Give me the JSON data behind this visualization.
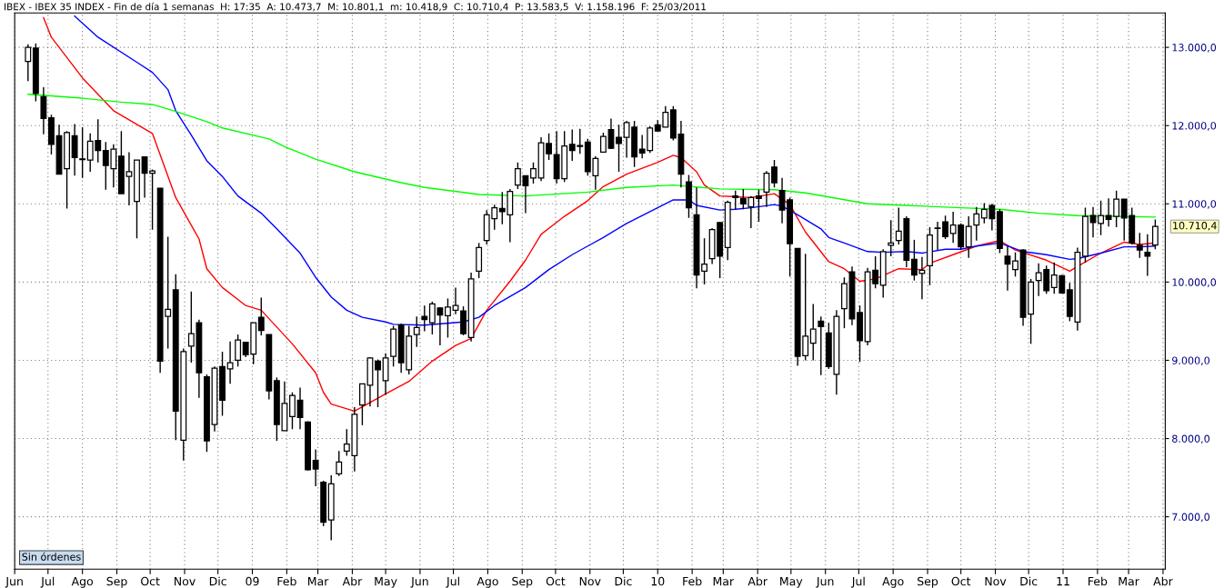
{
  "chart_data": {
    "type": "candlestick",
    "title": "IBEX - IBEX 35 INDEX - Fin de día 1 semanas  H: 17:35  A: 10.473,7  M: 10.801,1  m: 10.418,9  C: 10.710,4  P: 13.583,5  V: 1.158.196  F: 25/03/2011",
    "x": [
      "2008-06-13",
      "2008-06-20",
      "2008-06-27",
      "2008-07-04",
      "2008-07-11",
      "2008-07-18",
      "2008-07-25",
      "2008-08-01",
      "2008-08-08",
      "2008-08-15",
      "2008-08-22",
      "2008-08-29",
      "2008-09-05",
      "2008-09-12",
      "2008-09-19",
      "2008-09-26",
      "2008-10-03",
      "2008-10-10",
      "2008-10-17",
      "2008-10-24",
      "2008-10-31",
      "2008-11-07",
      "2008-11-14",
      "2008-11-21",
      "2008-11-28",
      "2008-12-05",
      "2008-12-12",
      "2008-12-19",
      "2008-12-26",
      "2009-01-02",
      "2009-01-09",
      "2009-01-16",
      "2009-01-23",
      "2009-01-30",
      "2009-02-06",
      "2009-02-13",
      "2009-02-20",
      "2009-02-27",
      "2009-03-06",
      "2009-03-13",
      "2009-03-20",
      "2009-03-27",
      "2009-04-03",
      "2009-04-10",
      "2009-04-17",
      "2009-04-24",
      "2009-05-01",
      "2009-05-08",
      "2009-05-15",
      "2009-05-22",
      "2009-05-29",
      "2009-06-05",
      "2009-06-12",
      "2009-06-19",
      "2009-06-26",
      "2009-07-03",
      "2009-07-10",
      "2009-07-17",
      "2009-07-24",
      "2009-07-31",
      "2009-08-07",
      "2009-08-14",
      "2009-08-21",
      "2009-08-28",
      "2009-09-04",
      "2009-09-11",
      "2009-09-18",
      "2009-09-25",
      "2009-10-02",
      "2009-10-09",
      "2009-10-16",
      "2009-10-23",
      "2009-10-30",
      "2009-11-06",
      "2009-11-13",
      "2009-11-20",
      "2009-11-27",
      "2009-12-04",
      "2009-12-11",
      "2009-12-18",
      "2009-12-25",
      "2010-01-01",
      "2010-01-08",
      "2010-01-15",
      "2010-01-22",
      "2010-01-29",
      "2010-02-05",
      "2010-02-12",
      "2010-02-19",
      "2010-02-26",
      "2010-03-05",
      "2010-03-12",
      "2010-03-19",
      "2010-03-26",
      "2010-04-02",
      "2010-04-09",
      "2010-04-16",
      "2010-04-23",
      "2010-04-30",
      "2010-05-07",
      "2010-05-14",
      "2010-05-21",
      "2010-05-28",
      "2010-06-04",
      "2010-06-11",
      "2010-06-18",
      "2010-06-25",
      "2010-07-02",
      "2010-07-09",
      "2010-07-16",
      "2010-07-23",
      "2010-07-30",
      "2010-08-06",
      "2010-08-13",
      "2010-08-20",
      "2010-08-27",
      "2010-09-03",
      "2010-09-10",
      "2010-09-17",
      "2010-09-24",
      "2010-10-01",
      "2010-10-08",
      "2010-10-15",
      "2010-10-22",
      "2010-10-29",
      "2010-11-05",
      "2010-11-12",
      "2010-11-19",
      "2010-11-26",
      "2010-12-03",
      "2010-12-10",
      "2010-12-17",
      "2010-12-24",
      "2010-12-31",
      "2011-01-07",
      "2011-01-14",
      "2011-01-21",
      "2011-01-28",
      "2011-02-04",
      "2011-02-11",
      "2011-02-18",
      "2011-02-25",
      "2011-03-04",
      "2011-03-11",
      "2011-03-18",
      "2011-03-25"
    ],
    "ohlc": [
      [
        12820,
        13040,
        12570,
        13000
      ],
      [
        12990,
        13050,
        12310,
        12410
      ],
      [
        12370,
        12490,
        11890,
        12090
      ],
      [
        12100,
        12140,
        11630,
        11760
      ],
      [
        11870,
        12010,
        11380,
        11380
      ],
      [
        11450,
        11930,
        10940,
        11910
      ],
      [
        11870,
        12020,
        11360,
        11590
      ],
      [
        11575,
        11980,
        11330,
        11565
      ],
      [
        11560,
        11900,
        11410,
        11800
      ],
      [
        11810,
        12080,
        11530,
        11680
      ],
      [
        11680,
        11790,
        11180,
        11490
      ],
      [
        11450,
        11760,
        11210,
        11700
      ],
      [
        11610,
        11930,
        11130,
        11130
      ],
      [
        11350,
        11660,
        10980,
        11410
      ],
      [
        11030,
        11560,
        10560,
        11560
      ],
      [
        11600,
        11600,
        11080,
        11390
      ],
      [
        11390,
        11440,
        10670,
        11420
      ],
      [
        11200,
        11200,
        8840,
        8990
      ],
      [
        9560,
        10580,
        9150,
        9650
      ],
      [
        9900,
        10100,
        7980,
        8350
      ],
      [
        7980,
        9150,
        7720,
        9110
      ],
      [
        9180,
        9880,
        8970,
        9340
      ],
      [
        9480,
        9520,
        8520,
        8840
      ],
      [
        8790,
        8820,
        7830,
        7970
      ],
      [
        8180,
        8920,
        8090,
        8900
      ],
      [
        8920,
        9110,
        8290,
        8490
      ],
      [
        8890,
        9240,
        8700,
        8970
      ],
      [
        9000,
        9330,
        8920,
        9260
      ],
      [
        9230,
        9230,
        9040,
        9070
      ],
      [
        9080,
        9480,
        8950,
        9480
      ],
      [
        9550,
        9800,
        9320,
        9380
      ],
      [
        9330,
        9330,
        8500,
        8610
      ],
      [
        8740,
        8780,
        7970,
        8180
      ],
      [
        8100,
        8730,
        8100,
        8450
      ],
      [
        8280,
        8590,
        8120,
        8550
      ],
      [
        8490,
        8650,
        8120,
        8270
      ],
      [
        8210,
        8220,
        7590,
        7600
      ],
      [
        7720,
        7860,
        7390,
        7610
      ],
      [
        7440,
        7460,
        6880,
        6930
      ],
      [
        6960,
        7530,
        6700,
        7420
      ],
      [
        7550,
        7840,
        7520,
        7700
      ],
      [
        7840,
        8120,
        7780,
        7930
      ],
      [
        7780,
        8400,
        7580,
        8310
      ],
      [
        8430,
        8700,
        8170,
        8700
      ],
      [
        8680,
        9040,
        8410,
        9030
      ],
      [
        8990,
        9010,
        8400,
        8880
      ],
      [
        8740,
        9090,
        8560,
        9030
      ],
      [
        9050,
        9440,
        8920,
        9400
      ],
      [
        9450,
        9470,
        8840,
        8970
      ],
      [
        8880,
        9440,
        8820,
        9310
      ],
      [
        9330,
        9560,
        9170,
        9420
      ],
      [
        9560,
        9700,
        9370,
        9520
      ],
      [
        9480,
        9750,
        9330,
        9720
      ],
      [
        9670,
        9680,
        9190,
        9580
      ],
      [
        9570,
        9790,
        9290,
        9680
      ],
      [
        9640,
        9930,
        9590,
        9700
      ],
      [
        9630,
        9690,
        9320,
        9340
      ],
      [
        9290,
        10120,
        9240,
        10040
      ],
      [
        10140,
        10500,
        10050,
        10440
      ],
      [
        10530,
        10920,
        10480,
        10860
      ],
      [
        10810,
        10990,
        10670,
        10950
      ],
      [
        10940,
        11150,
        10740,
        10900
      ],
      [
        10860,
        11190,
        10510,
        11160
      ],
      [
        11240,
        11530,
        11190,
        11450
      ],
      [
        11360,
        11360,
        10880,
        11230
      ],
      [
        11330,
        11530,
        11260,
        11450
      ],
      [
        11330,
        11850,
        11290,
        11780
      ],
      [
        11770,
        11900,
        11560,
        11640
      ],
      [
        11630,
        11930,
        11260,
        11320
      ],
      [
        11320,
        11930,
        11280,
        11740
      ],
      [
        11760,
        11950,
        11550,
        11680
      ],
      [
        11745,
        11960,
        11640,
        11735
      ],
      [
        11790,
        11830,
        11360,
        11410
      ],
      [
        11360,
        11610,
        11180,
        11580
      ],
      [
        11660,
        11910,
        11660,
        11860
      ],
      [
        11950,
        12090,
        11700,
        11710
      ],
      [
        11850,
        12010,
        11410,
        11770
      ],
      [
        11850,
        12060,
        11590,
        12040
      ],
      [
        11980,
        12060,
        11470,
        11600
      ],
      [
        11700,
        11880,
        11580,
        11650
      ],
      [
        11680,
        11990,
        11650,
        11970
      ],
      [
        12010,
        12070,
        11930,
        11930
      ],
      [
        11980,
        12250,
        11980,
        12170
      ],
      [
        12200,
        12250,
        11810,
        11840
      ],
      [
        11890,
        12060,
        11210,
        11380
      ],
      [
        11280,
        11370,
        10820,
        10950
      ],
      [
        10860,
        11210,
        9920,
        10090
      ],
      [
        10140,
        10560,
        9970,
        10230
      ],
      [
        10300,
        10690,
        10230,
        10670
      ],
      [
        10760,
        10770,
        10050,
        10330
      ],
      [
        10440,
        11040,
        10280,
        11020
      ],
      [
        11100,
        11170,
        10930,
        11080
      ],
      [
        11070,
        11190,
        10930,
        11000
      ],
      [
        10960,
        11100,
        10690,
        11080
      ],
      [
        11100,
        11180,
        10770,
        11070
      ],
      [
        11150,
        11420,
        10960,
        11390
      ],
      [
        11470,
        11560,
        11210,
        11270
      ],
      [
        11170,
        11330,
        10750,
        10920
      ],
      [
        11050,
        11080,
        10070,
        10490
      ],
      [
        10430,
        10430,
        8930,
        9050
      ],
      [
        9060,
        10360,
        9000,
        9310
      ],
      [
        9220,
        9720,
        9000,
        9400
      ],
      [
        9500,
        9560,
        8810,
        9430
      ],
      [
        9350,
        9480,
        8890,
        8920
      ],
      [
        8820,
        9640,
        8560,
        9560
      ],
      [
        9660,
        10060,
        9410,
        9980
      ],
      [
        10130,
        10200,
        9450,
        9530
      ],
      [
        9610,
        9700,
        8980,
        9250
      ],
      [
        9240,
        10180,
        9190,
        10130
      ],
      [
        10150,
        10330,
        9920,
        9980
      ],
      [
        9960,
        10420,
        9800,
        10390
      ],
      [
        10470,
        10790,
        10330,
        10500
      ],
      [
        10530,
        10950,
        10480,
        10650
      ],
      [
        10810,
        10840,
        10190,
        10280
      ],
      [
        10290,
        10540,
        10020,
        10090
      ],
      [
        10110,
        10320,
        9780,
        10150
      ],
      [
        10210,
        10700,
        9960,
        10600
      ],
      [
        10685,
        10770,
        10410,
        10690
      ],
      [
        10770,
        10850,
        10550,
        10580
      ],
      [
        10620,
        10900,
        10500,
        10730
      ],
      [
        10730,
        10750,
        10420,
        10450
      ],
      [
        10450,
        10840,
        10310,
        10710
      ],
      [
        10730,
        10960,
        10530,
        10870
      ],
      [
        10820,
        11010,
        10750,
        10930
      ],
      [
        10980,
        11000,
        10660,
        10810
      ],
      [
        10900,
        10930,
        10370,
        10430
      ],
      [
        10330,
        10460,
        9890,
        10230
      ],
      [
        10160,
        10380,
        10070,
        10270
      ],
      [
        10410,
        10420,
        9440,
        9550
      ],
      [
        9590,
        10040,
        9210,
        10000
      ],
      [
        10020,
        10240,
        9820,
        10120
      ],
      [
        10160,
        10210,
        9850,
        9890
      ],
      [
        9930,
        10250,
        9850,
        10090
      ],
      [
        10080,
        10090,
        9850,
        9860
      ],
      [
        9900,
        9990,
        9500,
        9560
      ],
      [
        9490,
        10440,
        9380,
        10380
      ],
      [
        10330,
        10950,
        10250,
        10840
      ],
      [
        10850,
        10960,
        10570,
        10760
      ],
      [
        10750,
        11040,
        10600,
        10850
      ],
      [
        10850,
        11070,
        10710,
        10800
      ],
      [
        10840,
        11170,
        10700,
        11060
      ],
      [
        11060,
        11060,
        10530,
        10820
      ],
      [
        10850,
        10950,
        10480,
        10500
      ],
      [
        10470,
        10630,
        10310,
        10410
      ],
      [
        10380,
        10610,
        10080,
        10330
      ],
      [
        10473.7,
        10801.1,
        10418.9,
        10710.4
      ]
    ],
    "series": [
      {
        "type": "line",
        "color": "#ff0000",
        "x": [
          "2008-06-27",
          "2008-07-04",
          "2008-08-01",
          "2008-08-29",
          "2008-10-03",
          "2008-10-24",
          "2008-11-14",
          "2008-11-21",
          "2008-12-05",
          "2008-12-26",
          "2009-01-09",
          "2009-02-06",
          "2009-02-27",
          "2009-03-06",
          "2009-03-13",
          "2009-04-03",
          "2009-04-17",
          "2009-05-01",
          "2009-05-22",
          "2009-06-12",
          "2009-07-03",
          "2009-07-17",
          "2009-07-31",
          "2009-08-21",
          "2009-09-04",
          "2009-09-18",
          "2009-10-09",
          "2009-10-30",
          "2009-11-13",
          "2009-12-04",
          "2010-01-01",
          "2010-01-15",
          "2010-01-22",
          "2010-02-05",
          "2010-02-12",
          "2010-02-26",
          "2010-03-12",
          "2010-03-26",
          "2010-04-16",
          "2010-04-30",
          "2010-05-14",
          "2010-06-04",
          "2010-06-18",
          "2010-07-02",
          "2010-07-16",
          "2010-08-06",
          "2010-08-27",
          "2010-09-03",
          "2010-09-24",
          "2010-10-15",
          "2010-11-05",
          "2010-11-19",
          "2010-12-17",
          "2011-01-07",
          "2011-01-14",
          "2011-02-04",
          "2011-02-25",
          "2011-03-11",
          "2011-03-25"
        ],
        "values": [
          13380,
          13130,
          12610,
          12190,
          11900,
          11080,
          10550,
          10170,
          9930,
          9700,
          9640,
          9210,
          8840,
          8590,
          8440,
          8350,
          8460,
          8570,
          8730,
          8990,
          9190,
          9280,
          9640,
          10010,
          10280,
          10610,
          10840,
          11040,
          11220,
          11380,
          11530,
          11620,
          11590,
          11410,
          11240,
          11100,
          11090,
          11080,
          11130,
          10990,
          10640,
          10260,
          10170,
          10010,
          10040,
          10170,
          10160,
          10240,
          10350,
          10460,
          10530,
          10410,
          10280,
          10140,
          10200,
          10370,
          10510,
          10480,
          10500
        ]
      },
      {
        "type": "line",
        "color": "#0000ff",
        "x": [
          "2008-07-25",
          "2008-08-15",
          "2008-09-19",
          "2008-10-03",
          "2008-10-17",
          "2008-10-24",
          "2008-11-07",
          "2008-11-21",
          "2008-12-05",
          "2008-12-19",
          "2009-01-09",
          "2009-01-23",
          "2009-02-13",
          "2009-02-27",
          "2009-03-13",
          "2009-03-27",
          "2009-04-10",
          "2009-05-01",
          "2009-05-08",
          "2009-06-05",
          "2009-07-10",
          "2009-07-24",
          "2009-08-07",
          "2009-09-04",
          "2009-09-25",
          "2009-10-16",
          "2009-10-30",
          "2009-11-13",
          "2009-12-04",
          "2009-12-25",
          "2010-01-15",
          "2010-01-29",
          "2010-02-05",
          "2010-02-26",
          "2010-03-12",
          "2010-03-26",
          "2010-04-16",
          "2010-04-23",
          "2010-05-07",
          "2010-05-28",
          "2010-06-04",
          "2010-06-18",
          "2010-07-09",
          "2010-07-23",
          "2010-08-13",
          "2010-08-27",
          "2010-09-17",
          "2010-10-01",
          "2010-10-15",
          "2010-11-05",
          "2010-11-26",
          "2010-12-17",
          "2011-01-07",
          "2011-01-14",
          "2011-02-04",
          "2011-02-25",
          "2011-03-11",
          "2011-03-25"
        ],
        "values": [
          13400,
          13130,
          12810,
          12680,
          12460,
          12190,
          11880,
          11550,
          11350,
          11100,
          10880,
          10680,
          10370,
          10060,
          9810,
          9640,
          9550,
          9490,
          9460,
          9450,
          9490,
          9550,
          9700,
          9930,
          10160,
          10350,
          10460,
          10570,
          10750,
          10900,
          11050,
          11050,
          10980,
          10920,
          10930,
          10950,
          10990,
          10970,
          10860,
          10680,
          10570,
          10500,
          10390,
          10380,
          10390,
          10370,
          10420,
          10420,
          10460,
          10500,
          10390,
          10350,
          10290,
          10300,
          10370,
          10450,
          10450,
          10460
        ]
      },
      {
        "type": "line",
        "color": "#00ff00",
        "x": [
          "2008-06-13",
          "2008-07-04",
          "2008-08-01",
          "2008-09-05",
          "2008-10-03",
          "2008-10-24",
          "2008-11-21",
          "2008-12-05",
          "2009-01-16",
          "2009-01-30",
          "2009-02-27",
          "2009-04-03",
          "2009-05-15",
          "2009-06-05",
          "2009-07-24",
          "2009-09-04",
          "2009-10-30",
          "2009-12-04",
          "2010-01-15",
          "2010-02-26",
          "2010-04-16",
          "2010-05-14",
          "2010-06-11",
          "2010-07-09",
          "2010-08-13",
          "2010-10-01",
          "2010-11-05",
          "2010-12-10",
          "2011-01-14",
          "2011-02-18",
          "2011-03-25"
        ],
        "values": [
          12400,
          12380,
          12350,
          12300,
          12270,
          12180,
          12050,
          11970,
          11830,
          11730,
          11570,
          11410,
          11270,
          11210,
          11120,
          11100,
          11150,
          11210,
          11240,
          11190,
          11180,
          11140,
          11070,
          11000,
          10980,
          10950,
          10930,
          10880,
          10850,
          10840,
          10830
        ]
      }
    ],
    "xlim": [
      "2008-06-01",
      "2011-04-03"
    ],
    "xticks": [
      {
        "value": "2008-06-01",
        "label": "Jun"
      },
      {
        "value": "2008-07-01",
        "label": "Jul"
      },
      {
        "value": "2008-08-01",
        "label": "Ago"
      },
      {
        "value": "2008-09-01",
        "label": "Sep"
      },
      {
        "value": "2008-10-01",
        "label": "Oct"
      },
      {
        "value": "2008-11-01",
        "label": "Nov"
      },
      {
        "value": "2008-12-01",
        "label": "Dic"
      },
      {
        "value": "2009-01-01",
        "label": "09"
      },
      {
        "value": "2009-02-01",
        "label": "Feb"
      },
      {
        "value": "2009-03-01",
        "label": "Mar"
      },
      {
        "value": "2009-04-01",
        "label": "Abr"
      },
      {
        "value": "2009-05-01",
        "label": "May"
      },
      {
        "value": "2009-06-01",
        "label": "Jun"
      },
      {
        "value": "2009-07-01",
        "label": "Jul"
      },
      {
        "value": "2009-08-01",
        "label": "Ago"
      },
      {
        "value": "2009-09-01",
        "label": "Sep"
      },
      {
        "value": "2009-10-01",
        "label": "Oct"
      },
      {
        "value": "2009-11-01",
        "label": "Nov"
      },
      {
        "value": "2009-12-01",
        "label": "Dic"
      },
      {
        "value": "2010-01-01",
        "label": "10"
      },
      {
        "value": "2010-02-01",
        "label": "Feb"
      },
      {
        "value": "2010-03-01",
        "label": "Mar"
      },
      {
        "value": "2010-04-01",
        "label": "Abr"
      },
      {
        "value": "2010-05-01",
        "label": "May"
      },
      {
        "value": "2010-06-01",
        "label": "Jun"
      },
      {
        "value": "2010-07-01",
        "label": "Jul"
      },
      {
        "value": "2010-08-01",
        "label": "Ago"
      },
      {
        "value": "2010-09-01",
        "label": "Sep"
      },
      {
        "value": "2010-10-01",
        "label": "Oct"
      },
      {
        "value": "2010-11-01",
        "label": "Nov"
      },
      {
        "value": "2010-12-01",
        "label": "Dic"
      },
      {
        "value": "2011-01-01",
        "label": "11"
      },
      {
        "value": "2011-02-01",
        "label": "Feb"
      },
      {
        "value": "2011-03-01",
        "label": "Mar"
      },
      {
        "value": "2011-04-01",
        "label": "Abr"
      }
    ],
    "ylim": [
      6330,
      13440
    ],
    "yticks": [
      {
        "value": 7000,
        "label": "7.000,0"
      },
      {
        "value": 8000,
        "label": "8.000,0"
      },
      {
        "value": 9000,
        "label": "9.000,0"
      },
      {
        "value": 10000,
        "label": "10.000,0"
      },
      {
        "value": 11000,
        "label": "11.000,0"
      },
      {
        "value": 12000,
        "label": "12.000,0"
      },
      {
        "value": 13000,
        "label": "13.000,0"
      }
    ],
    "grid": true,
    "annotations": [
      "Sin órdenes",
      {
        "text": "10.710,4",
        "x": "2011-03-25",
        "y": 10710.4
      }
    ]
  }
}
